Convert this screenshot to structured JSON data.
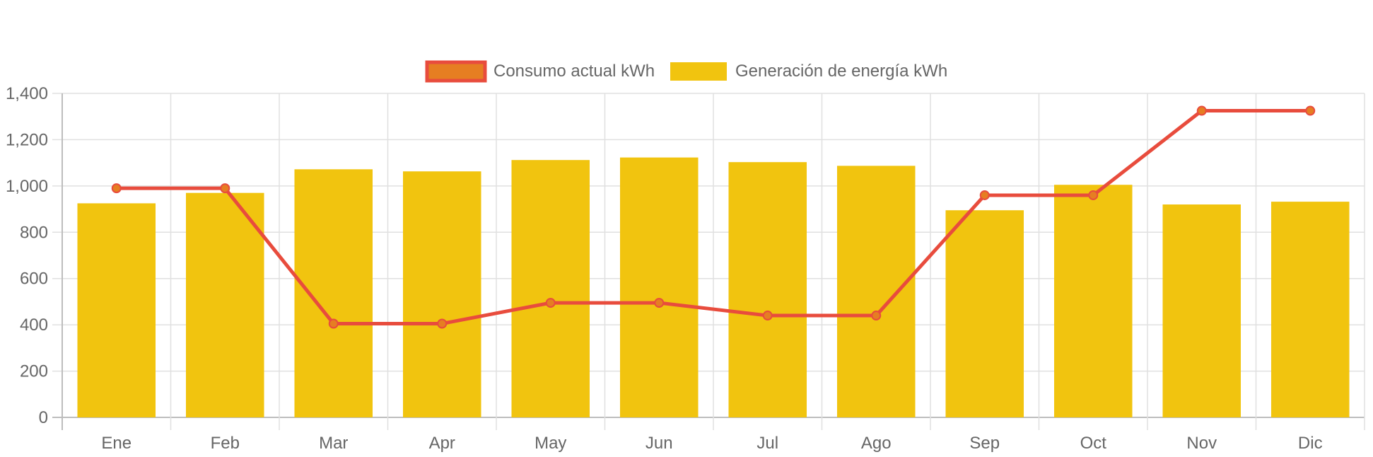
{
  "chart_data": {
    "type": "bar",
    "categories": [
      "Ene",
      "Feb",
      "Mar",
      "Apr",
      "May",
      "Jun",
      "Jul",
      "Ago",
      "Sep",
      "Oct",
      "Nov",
      "Dic"
    ],
    "series": [
      {
        "name": "Consumo actual kWh",
        "type": "line",
        "values": [
          990,
          990,
          405,
          405,
          495,
          495,
          440,
          440,
          960,
          960,
          1325,
          1325
        ]
      },
      {
        "name": "Generación de energía kWh",
        "type": "bar",
        "values": [
          925,
          970,
          1072,
          1063,
          1112,
          1123,
          1103,
          1087,
          895,
          1005,
          920,
          932
        ]
      }
    ],
    "y_ticks": [
      "0",
      "200",
      "400",
      "600",
      "800",
      "1,000",
      "1,200",
      "1,400"
    ],
    "ylim": [
      0,
      1400
    ],
    "grid": true,
    "legend_position": "top-center",
    "colors": {
      "line": "#E84C3D",
      "line_point_fill": "#E67E22",
      "line_legend_fill": "#E67E22",
      "bar": "#F1C40F",
      "grid": "#E0E0E0",
      "tick_text": "#666666"
    }
  }
}
